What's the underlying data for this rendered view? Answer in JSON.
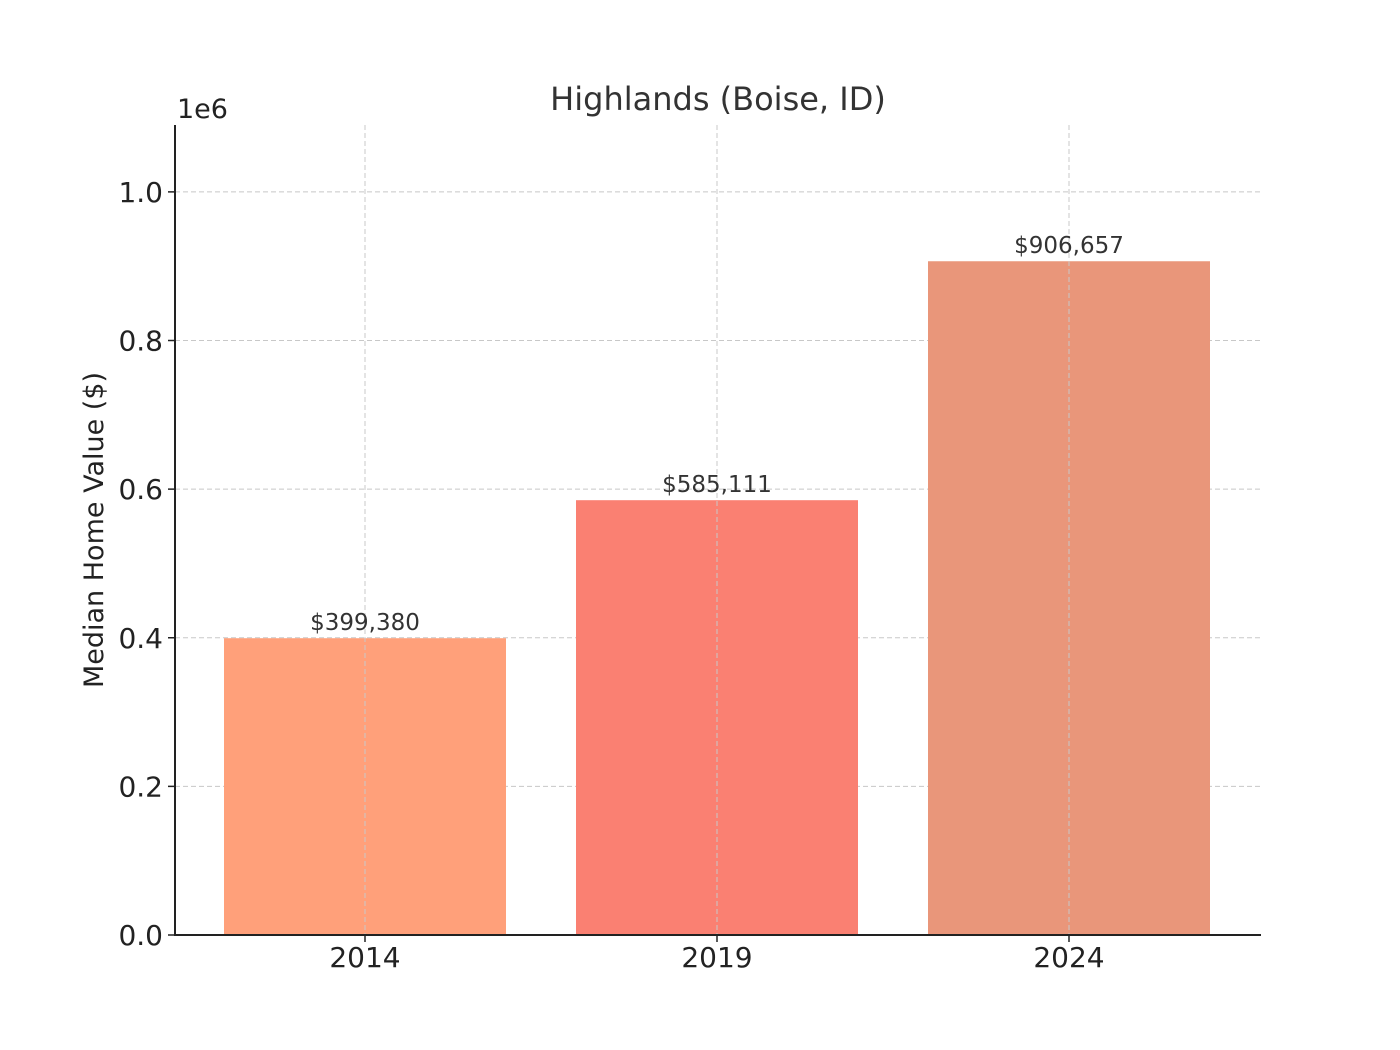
{
  "chart_data": {
    "type": "bar",
    "title": "Highlands (Boise, ID)",
    "xlabel": "",
    "ylabel": "Median Home Value ($)",
    "y_offset_label": "1e6",
    "categories": [
      "2014",
      "2019",
      "2024"
    ],
    "values": [
      399380,
      585111,
      906657
    ],
    "data_labels": [
      "$399,380",
      "$585,111",
      "$906,657"
    ],
    "bar_colors": [
      "#FFA07A",
      "#FA8072",
      "#E9967A"
    ],
    "ylim": [
      0,
      1090000
    ],
    "yticks": [
      0,
      200000,
      400000,
      600000,
      800000,
      1000000
    ],
    "ytick_labels": [
      "0.0",
      "0.2",
      "0.4",
      "0.6",
      "0.8",
      "1.0"
    ],
    "grid": true,
    "legend": "none"
  }
}
